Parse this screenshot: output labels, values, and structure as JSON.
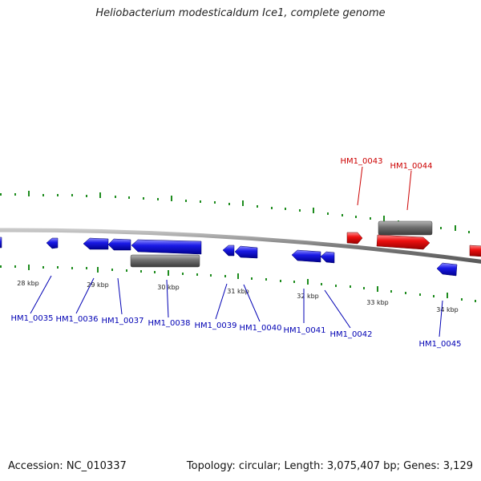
{
  "title": "Heliobacterium modesticaldum Ice1, complete genome",
  "footer": {
    "accession": "Accession: NC_010337",
    "topology": "Topology: circular; Length: 3,075,407 bp; Genes: 3,129"
  },
  "colors": {
    "forward_gene": "#ee1111",
    "reverse_gene": "#1a1ae6",
    "rna_feature": "#6e6e6e",
    "backbone": "#8c8c8c",
    "ticks": "#1e8c1e",
    "forward_label": "#cc0000",
    "reverse_label": "#0000b4"
  },
  "scale": {
    "ticks": [
      {
        "label": "28 kbp"
      },
      {
        "label": "29 kbp"
      },
      {
        "label": "30 kbp"
      },
      {
        "label": "31 kbp"
      },
      {
        "label": "32 kbp"
      },
      {
        "label": "33 kbp"
      },
      {
        "label": "34 kbp"
      }
    ]
  },
  "genes": [
    {
      "id": "HM1_0035",
      "strand": "reverse"
    },
    {
      "id": "HM1_0036",
      "strand": "reverse"
    },
    {
      "id": "HM1_0037",
      "strand": "reverse"
    },
    {
      "id": "HM1_0038",
      "strand": "reverse"
    },
    {
      "id": "HM1_0039",
      "strand": "reverse"
    },
    {
      "id": "HM1_0040",
      "strand": "reverse"
    },
    {
      "id": "HM1_0041",
      "strand": "reverse"
    },
    {
      "id": "HM1_0042",
      "strand": "reverse"
    },
    {
      "id": "HM1_0043",
      "strand": "forward"
    },
    {
      "id": "HM1_0044",
      "strand": "forward"
    },
    {
      "id": "HM1_0045",
      "strand": "reverse"
    }
  ]
}
